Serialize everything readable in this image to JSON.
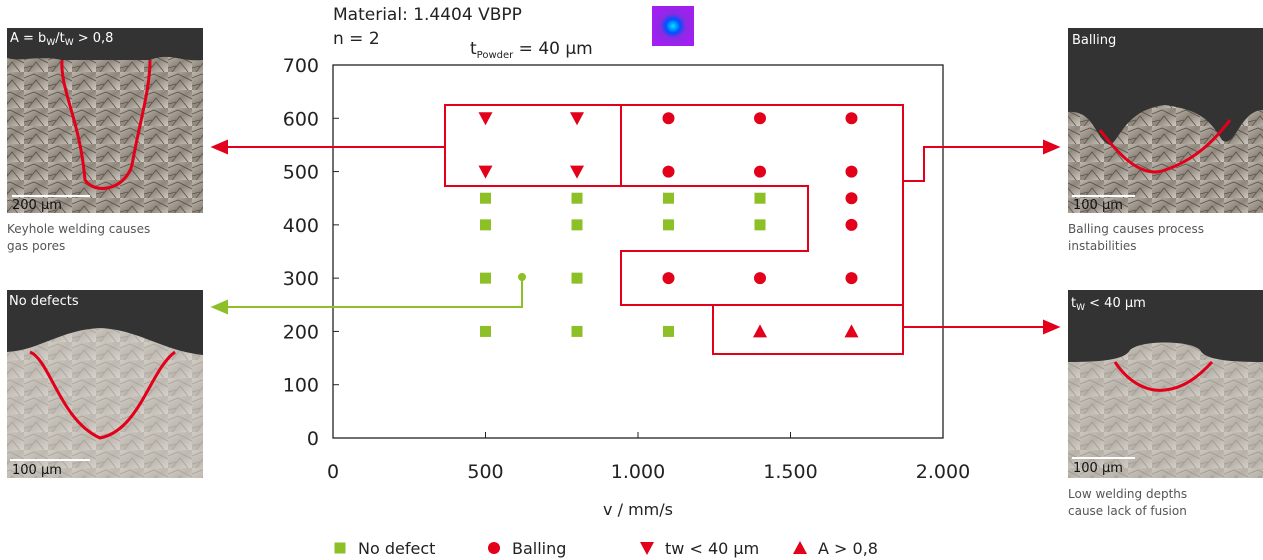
{
  "chart_data": {
    "type": "scatter",
    "annotations": {
      "material": "Material: 1.4404 VBPP",
      "n": "n = 2",
      "powder_t": "t",
      "powder_sub": "Powder",
      "powder_rest": " = 40 µm"
    },
    "xlabel": "v / mm/s",
    "xlim": [
      0,
      2000
    ],
    "xticks": [
      0,
      500,
      {
        "value": 1000,
        "label": "1.000"
      },
      {
        "value": 1500,
        "label": "1.500"
      },
      {
        "value": 2000,
        "label": "2.000"
      }
    ],
    "ylim": [
      0,
      700
    ],
    "yticks": [
      0,
      100,
      200,
      300,
      400,
      500,
      600,
      700
    ],
    "series": [
      {
        "name": "No defect",
        "color": "#8dbf26",
        "marker": "square",
        "x": [
          500,
          500,
          500,
          500,
          800,
          800,
          800,
          800,
          1100,
          1100,
          1100,
          1400,
          1400
        ],
        "y": [
          450,
          400,
          300,
          200,
          450,
          400,
          300,
          200,
          450,
          400,
          200,
          450,
          400
        ]
      },
      {
        "name": "Balling",
        "color": "#e2001a",
        "marker": "circle",
        "x": [
          1100,
          1100,
          1100,
          1400,
          1400,
          1400,
          1700,
          1700,
          1700,
          1700,
          1700
        ],
        "y": [
          600,
          500,
          300,
          600,
          500,
          300,
          600,
          500,
          450,
          400,
          300
        ]
      },
      {
        "name": "tw < 40 µm",
        "color": "#e2001a",
        "marker": "triangle-down",
        "x": [
          500,
          500,
          800,
          800
        ],
        "y": [
          600,
          500,
          600,
          500
        ]
      },
      {
        "name": "A > 0,8",
        "color": "#e2001a",
        "marker": "triangle-up",
        "x": [
          1400,
          1700
        ],
        "y": [
          200,
          200
        ]
      }
    ],
    "images": [
      {
        "label": "A = b",
        "label_sub": "W",
        "label_mid": "/t",
        "label_sub2": "W",
        "label_rest": " > 0,8",
        "scale": "200 µm",
        "caption": [
          "Keyhole welding causes",
          "gas pores"
        ]
      },
      {
        "label": "No defects",
        "scale": "100 µm"
      },
      {
        "label": "Balling",
        "scale": "100 µm",
        "caption": [
          "Balling causes process",
          "instabilities"
        ]
      },
      {
        "label": "t",
        "label_sub": "W",
        "label_rest": " < 40 µm",
        "scale": "100 µm",
        "caption": [
          "Low welding depths",
          "cause lack of fusion"
        ]
      }
    ]
  }
}
